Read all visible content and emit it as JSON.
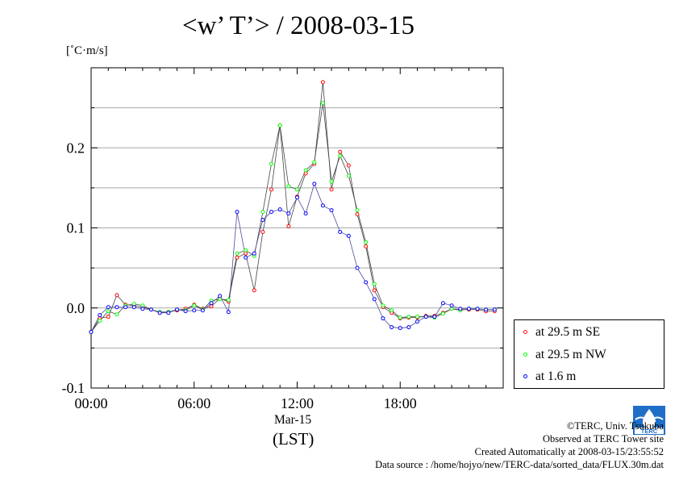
{
  "title": "<w’ T’> / 2008-03-15",
  "unit_label": "[˚C·m/s]",
  "x_axis": {
    "tick_labels": [
      "00:00",
      "06:00",
      "12:00",
      "18:00"
    ],
    "date_label": "Mar-15",
    "zone_label": "(LST)"
  },
  "y_axis": {
    "tick_labels": [
      "-0.1",
      "0.0",
      "0.1",
      "0.2"
    ]
  },
  "legend": [
    {
      "label": "at 29.5 m SE",
      "color": "#ff0000"
    },
    {
      "label": "at 29.5 m NW",
      "color": "#00ff00"
    },
    {
      "label": "at 1.6 m",
      "color": "#0000ff"
    }
  ],
  "logo_text": "TERC",
  "credits": {
    "copyright": "©TERC, Univ. Tsukuba",
    "site": "Observed at TERC Tower site",
    "created": "Created Automatically at 2008-03-15/23:55:52",
    "source": "Data source : /home/hojyo/new/TERC-data/sorted_data/FLUX.30m.dat"
  },
  "chart_data": {
    "type": "line",
    "title": "<w’ T’> / 2008-03-15",
    "ylabel": "[˚C·m/s]",
    "xlabel": "Mar-15 (LST)",
    "xlim": [
      0,
      23.5
    ],
    "ylim": [
      -0.1,
      0.3
    ],
    "grid": true,
    "legend_position": "right, outside plot",
    "x_hours": [
      0,
      0.5,
      1,
      1.5,
      2,
      2.5,
      3,
      3.5,
      4,
      4.5,
      5,
      5.5,
      6,
      6.5,
      7,
      7.5,
      8,
      8.5,
      9,
      9.5,
      10,
      10.5,
      11,
      11.5,
      12,
      12.5,
      13,
      13.5,
      14,
      14.5,
      15,
      15.5,
      16,
      16.5,
      17,
      17.5,
      18,
      18.5,
      19,
      19.5,
      20,
      20.5,
      21,
      21.5,
      22,
      22.5,
      23,
      23.5
    ],
    "series": [
      {
        "name": "at 29.5 m SE",
        "color": "#ff0000",
        "values": [
          -0.03,
          -0.013,
          -0.011,
          0.016,
          0.004,
          0.003,
          0.001,
          -0.002,
          -0.006,
          -0.005,
          -0.003,
          -0.001,
          0.004,
          -0.001,
          0.002,
          0.012,
          0.008,
          0.063,
          0.068,
          0.022,
          0.095,
          0.148,
          0.228,
          0.102,
          0.139,
          0.168,
          0.18,
          0.282,
          0.148,
          0.195,
          0.178,
          0.117,
          0.077,
          0.022,
          0.001,
          -0.006,
          -0.013,
          -0.012,
          -0.012,
          -0.01,
          -0.01,
          -0.006,
          -0.001,
          -0.002,
          -0.002,
          -0.002,
          -0.004,
          -0.004
        ]
      },
      {
        "name": "at 29.5 m NW",
        "color": "#00ff00",
        "values": [
          -0.03,
          -0.016,
          -0.004,
          -0.008,
          0.003,
          0.005,
          0.003,
          -0.002,
          -0.005,
          -0.005,
          -0.002,
          -0.003,
          0.003,
          -0.002,
          0.009,
          0.011,
          0.01,
          0.068,
          0.072,
          0.065,
          0.12,
          0.18,
          0.228,
          0.152,
          0.148,
          0.172,
          0.182,
          0.256,
          0.158,
          0.19,
          0.165,
          0.122,
          0.082,
          0.03,
          0.003,
          -0.003,
          -0.012,
          -0.011,
          -0.011,
          -0.011,
          -0.012,
          -0.007,
          -0.001,
          -0.003,
          -0.001,
          -0.001,
          -0.002,
          -0.002
        ]
      },
      {
        "name": "at 1.6 m",
        "color": "#0000ff",
        "values": [
          -0.03,
          -0.009,
          0.001,
          0.001,
          0.001,
          0.001,
          -0.001,
          -0.002,
          -0.006,
          -0.006,
          -0.002,
          -0.004,
          -0.003,
          -0.003,
          0.006,
          0.015,
          -0.005,
          0.12,
          0.063,
          0.068,
          0.11,
          0.12,
          0.123,
          0.118,
          0.138,
          0.118,
          0.155,
          0.128,
          0.122,
          0.095,
          0.09,
          0.05,
          0.032,
          0.011,
          -0.013,
          -0.024,
          -0.025,
          -0.024,
          -0.017,
          -0.011,
          -0.011,
          0.006,
          0.003,
          -0.001,
          -0.001,
          -0.001,
          -0.002,
          -0.002
        ]
      }
    ]
  }
}
